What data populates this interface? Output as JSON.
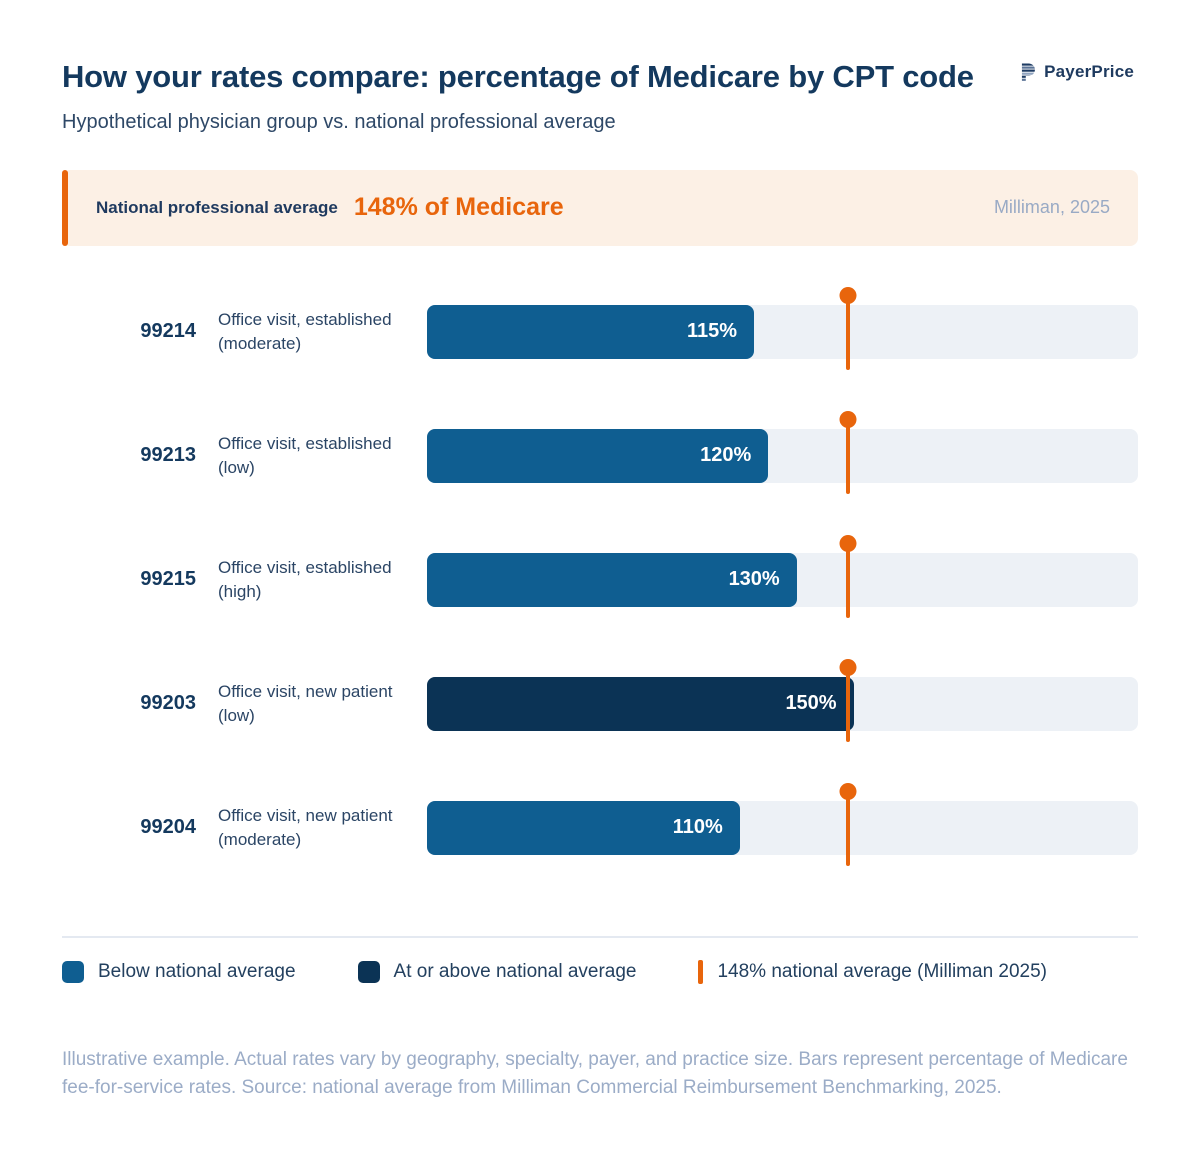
{
  "header": {
    "title": "How your rates compare: percentage of Medicare by CPT code",
    "subtitle": "Hypothetical physician group vs. national professional average",
    "brand": "PayerPrice"
  },
  "callout": {
    "label": "National professional average",
    "value": "148% of Medicare",
    "source": "Milliman, 2025"
  },
  "chart_data": {
    "type": "bar",
    "orientation": "horizontal",
    "title": "How your rates compare: percentage of Medicare by CPT code",
    "subtitle": "Hypothetical physician group vs. national professional average",
    "unit": "% of Medicare",
    "xlim": [
      0,
      250
    ],
    "grid": false,
    "reference_line": {
      "value": 148,
      "label": "148% national average (Milliman 2025)",
      "source": "Milliman, 2025"
    },
    "rows": [
      {
        "code": "99214",
        "label": "Office visit, established (moderate)",
        "value": 115,
        "value_label": "115%",
        "status": "below"
      },
      {
        "code": "99213",
        "label": "Office visit, established (low)",
        "value": 120,
        "value_label": "120%",
        "status": "below"
      },
      {
        "code": "99215",
        "label": "Office visit, established (high)",
        "value": 130,
        "value_label": "130%",
        "status": "below"
      },
      {
        "code": "99203",
        "label": "Office visit, new patient (low)",
        "value": 150,
        "value_label": "150%",
        "status": "above"
      },
      {
        "code": "99204",
        "label": "Office visit, new patient (moderate)",
        "value": 110,
        "value_label": "110%",
        "status": "below"
      }
    ]
  },
  "legend": [
    {
      "label": "Below national average",
      "swatch": "square",
      "color_key": "bar_below"
    },
    {
      "label": "At or above national average",
      "swatch": "square",
      "color_key": "bar_above"
    },
    {
      "label": "148% national average (Milliman 2025)",
      "swatch": "line",
      "color_key": "accent_orange"
    }
  ],
  "footnote": "Illustrative example. Actual rates vary by geography, specialty, payer, and practice size. Bars represent percentage of Medicare fee-for-service rates. Source: national average from Milliman Commercial Reimbursement Benchmarking, 2025.",
  "colors": {
    "accent_orange": "#E8650C",
    "bar_below": "#0F5E91",
    "bar_above": "#0B3355",
    "track": "#EDF1F6",
    "callout_bg": "#FCF0E5",
    "navy_dark": "#14395E",
    "navy_text": "#2E4867",
    "muted": "#99AAC5",
    "divider": "#E4E9F1"
  }
}
